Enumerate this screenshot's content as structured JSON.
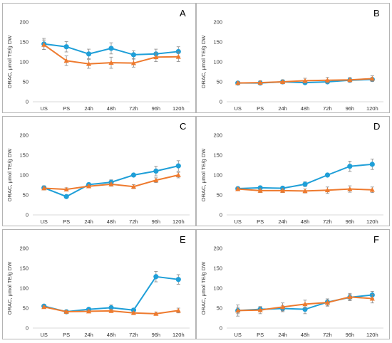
{
  "colors": {
    "blue": "#1f9fd8",
    "orange": "#ee7a2e",
    "axis": "#d9d9d9",
    "border": "#b4b4b4"
  },
  "chart_data": [
    {
      "type": "line",
      "panel_label": "A",
      "ylabel": "ORAC, μmol TE/g DW",
      "categories": [
        "US",
        "PS",
        "24h",
        "48h",
        "72h",
        "96h",
        "120h"
      ],
      "yticks": [
        0,
        50,
        100,
        150,
        200
      ],
      "ylim": [
        0,
        200
      ],
      "grid": false,
      "series": [
        {
          "color": "blue",
          "marker": "circle",
          "values": [
            145,
            138,
            120,
            134,
            118,
            120,
            126
          ],
          "errors": [
            14,
            13,
            12,
            14,
            10,
            12,
            12
          ]
        },
        {
          "color": "orange",
          "marker": "triangle",
          "values": [
            143,
            103,
            95,
            98,
            97,
            112,
            113
          ],
          "errors": [
            12,
            12,
            11,
            14,
            10,
            11,
            12
          ]
        }
      ]
    },
    {
      "type": "line",
      "panel_label": "B",
      "ylabel": "ORAC, μmol TE/g DW",
      "categories": [
        "US",
        "PS",
        "24h",
        "48h",
        "72h",
        "96h",
        "120h"
      ],
      "yticks": [
        0,
        50,
        100,
        150,
        200
      ],
      "ylim": [
        0,
        200
      ],
      "grid": false,
      "series": [
        {
          "color": "blue",
          "marker": "circle",
          "values": [
            47,
            47,
            50,
            48,
            50,
            54,
            56
          ],
          "errors": [
            4,
            4,
            4,
            4,
            4,
            4,
            4
          ]
        },
        {
          "color": "orange",
          "marker": "triangle",
          "values": [
            47,
            48,
            50,
            53,
            54,
            55,
            58
          ],
          "errors": [
            4,
            5,
            5,
            6,
            7,
            6,
            7
          ]
        }
      ]
    },
    {
      "type": "line",
      "panel_label": "C",
      "ylabel": "ORAC, μmol TE/g DW",
      "categories": [
        "US",
        "PS",
        "24h",
        "48h",
        "72h",
        "96h",
        "120h"
      ],
      "yticks": [
        0,
        50,
        100,
        150,
        200
      ],
      "ylim": [
        0,
        200
      ],
      "grid": false,
      "series": [
        {
          "color": "blue",
          "marker": "circle",
          "values": [
            68,
            46,
            76,
            82,
            100,
            110,
            123
          ],
          "errors": [
            5,
            3,
            4,
            6,
            4,
            12,
            13
          ]
        },
        {
          "color": "orange",
          "marker": "triangle",
          "values": [
            67,
            64,
            72,
            77,
            71,
            87,
            100
          ],
          "errors": [
            4,
            4,
            4,
            5,
            5,
            6,
            7
          ]
        }
      ]
    },
    {
      "type": "line",
      "panel_label": "D",
      "ylabel": "ORAC, μmol TE/g DW",
      "categories": [
        "US",
        "PS",
        "24h",
        "48h",
        "72h",
        "96h",
        "120h"
      ],
      "yticks": [
        0,
        50,
        100,
        150,
        200
      ],
      "ylim": [
        0,
        200
      ],
      "grid": false,
      "series": [
        {
          "color": "blue",
          "marker": "circle",
          "values": [
            66,
            68,
            67,
            77,
            100,
            122,
            127
          ],
          "errors": [
            4,
            4,
            4,
            6,
            4,
            13,
            13
          ]
        },
        {
          "color": "orange",
          "marker": "triangle",
          "values": [
            65,
            61,
            61,
            60,
            62,
            65,
            63
          ],
          "errors": [
            4,
            5,
            5,
            5,
            8,
            8,
            7
          ]
        }
      ]
    },
    {
      "type": "line",
      "panel_label": "E",
      "ylabel": "ORAC, μmol TE/g DW",
      "categories": [
        "US",
        "PS",
        "24h",
        "48h",
        "72h",
        "96h",
        "120h"
      ],
      "yticks": [
        0,
        50,
        100,
        150,
        200
      ],
      "ylim": [
        0,
        200
      ],
      "grid": false,
      "series": [
        {
          "color": "blue",
          "marker": "circle",
          "values": [
            55,
            41,
            47,
            51,
            45,
            129,
            122
          ],
          "errors": [
            4,
            3,
            4,
            7,
            4,
            13,
            12
          ]
        },
        {
          "color": "orange",
          "marker": "triangle",
          "values": [
            53,
            41,
            42,
            43,
            38,
            36,
            44
          ],
          "errors": [
            4,
            3,
            3,
            4,
            3,
            4,
            6
          ]
        }
      ]
    },
    {
      "type": "line",
      "panel_label": "F",
      "ylabel": "ORAC, μmol TE/g DW",
      "categories": [
        "US",
        "PS",
        "24h",
        "48h",
        "72h",
        "96h",
        "120h"
      ],
      "yticks": [
        0,
        50,
        100,
        150,
        200
      ],
      "ylim": [
        0,
        200
      ],
      "grid": false,
      "series": [
        {
          "color": "blue",
          "marker": "circle",
          "values": [
            44,
            47,
            49,
            47,
            65,
            77,
            83
          ],
          "errors": [
            14,
            6,
            8,
            11,
            8,
            8,
            9
          ]
        },
        {
          "color": "orange",
          "marker": "triangle",
          "values": [
            44,
            45,
            53,
            60,
            64,
            78,
            74
          ],
          "errors": [
            8,
            9,
            10,
            10,
            9,
            9,
            11
          ]
        }
      ]
    }
  ]
}
